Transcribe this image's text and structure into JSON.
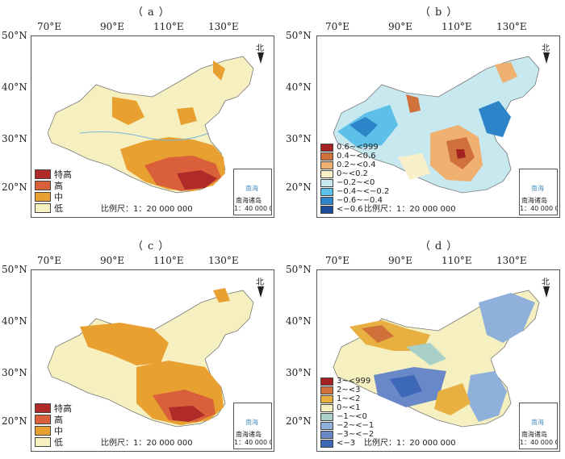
{
  "panels": [
    {
      "id": "a",
      "label": "（a）",
      "lon_ticks": [
        "70°E",
        "90°E",
        "110°E",
        "130°E"
      ],
      "lat_ticks": [
        "50°N",
        "40°N",
        "30°N",
        "20°N"
      ],
      "legend": [
        {
          "label": "特高",
          "color": "#b02a2a"
        },
        {
          "label": "高",
          "color": "#d9603a"
        },
        {
          "label": "中",
          "color": "#e8a030"
        },
        {
          "label": "低",
          "color": "#f6f0c0"
        }
      ],
      "scale_text": "比例尺：1：20 000 000",
      "inset": {
        "title": "南海诸岛",
        "scale": "1：40 000 000",
        "sea": "南海"
      },
      "north_label": "北"
    },
    {
      "id": "b",
      "label": "（b）",
      "lon_ticks": [
        "70°E",
        "90°E",
        "110°E",
        "130°E"
      ],
      "lat_ticks": [
        "50°N",
        "40°N",
        "30°N",
        "20°N"
      ],
      "legend": [
        {
          "label": "0.6~<999",
          "color": "#a52222"
        },
        {
          "label": "0.4~<0.6",
          "color": "#d0703a"
        },
        {
          "label": "0.2~<0.4",
          "color": "#efb070"
        },
        {
          "label": "0~<0.2",
          "color": "#f8f0c8"
        },
        {
          "label": "−0.2~<0",
          "color": "#c8e8f0"
        },
        {
          "label": "−0.4~<−0.2",
          "color": "#5cc0e8"
        },
        {
          "label": "−0.6~−0.4",
          "color": "#2d84c8"
        },
        {
          "label": "<−0.6",
          "color": "#1c4c98"
        }
      ],
      "scale_text": "比例尺：1：20 000 000",
      "inset": {
        "title": "南海诸岛",
        "scale": "1：40 000 000",
        "sea": "南海"
      },
      "north_label": "北"
    },
    {
      "id": "c",
      "label": "（c）",
      "lon_ticks": [
        "70°E",
        "90°E",
        "110°E",
        "130°E"
      ],
      "lat_ticks": [
        "50°N",
        "40°N",
        "30°N",
        "20°N"
      ],
      "legend": [
        {
          "label": "特高",
          "color": "#b02a2a"
        },
        {
          "label": "高",
          "color": "#d9603a"
        },
        {
          "label": "中",
          "color": "#e8a030"
        },
        {
          "label": "低",
          "color": "#f6f0c0"
        }
      ],
      "scale_text": "比例尺：1：20 000 000",
      "inset": {
        "title": "南海诸岛",
        "scale": "1：40 000 000",
        "sea": "南海"
      },
      "north_label": "北"
    },
    {
      "id": "d",
      "label": "（d）",
      "lon_ticks": [
        "70°E",
        "90°E",
        "110°E",
        "130°E"
      ],
      "lat_ticks": [
        "50°N",
        "40°N",
        "30°N",
        "20°N"
      ],
      "legend": [
        {
          "label": "3~<999",
          "color": "#a52222"
        },
        {
          "label": "2~<3",
          "color": "#d0703a"
        },
        {
          "label": "1~<2",
          "color": "#e8b040"
        },
        {
          "label": "0~<1",
          "color": "#f6f0c0"
        },
        {
          "label": "−1~<0",
          "color": "#a8d0c8"
        },
        {
          "label": "−2~<−1",
          "color": "#90b0dc"
        },
        {
          "label": "−3~<−2",
          "color": "#6888c8"
        },
        {
          "label": "<−3",
          "color": "#3d68b8"
        }
      ],
      "scale_text": "比例尺：1：20 000 000",
      "inset": {
        "title": "南海诸岛",
        "scale": "1：40 000 000",
        "sea": "南海"
      },
      "north_label": "北"
    }
  ],
  "colors": {
    "river": "#7ab6d8",
    "border": "#777777"
  }
}
